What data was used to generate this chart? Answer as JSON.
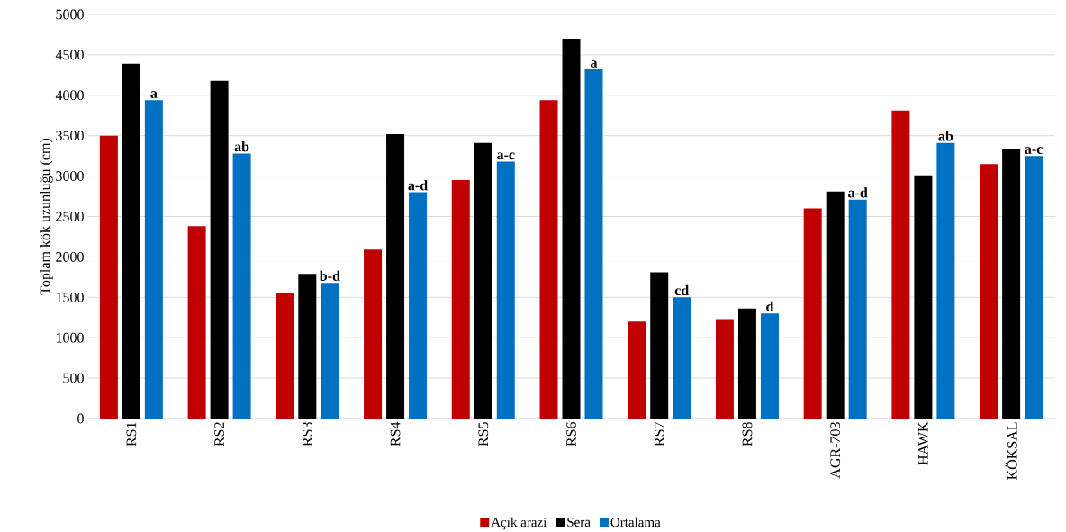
{
  "chart_data": {
    "type": "bar",
    "ylabel": "Toplam kök uzunluğu (cm)",
    "categories": [
      "RS1",
      "RS2",
      "RS3",
      "RS4",
      "RS5",
      "RS6",
      "RS7",
      "RS8",
      "AGR-703",
      "HAWK",
      "KÖKSAL"
    ],
    "series": [
      {
        "name": "Açık arazi",
        "color": "#c00000",
        "values": [
          3500,
          2380,
          1560,
          2090,
          2950,
          3940,
          1200,
          1230,
          2600,
          3810,
          3150
        ]
      },
      {
        "name": "Sera",
        "color": "#000000",
        "values": [
          4390,
          4180,
          1790,
          3520,
          3410,
          4700,
          1810,
          1360,
          2810,
          3010,
          3340
        ]
      },
      {
        "name": "Ortalama",
        "color": "#0070c0",
        "values": [
          3940,
          3280,
          1680,
          2800,
          3180,
          4320,
          1500,
          1300,
          2710,
          3410,
          3250
        ]
      }
    ],
    "annotations": [
      "a",
      "ab",
      "b-d",
      "a-d",
      "a-c",
      "a",
      "cd",
      "d",
      "a-d",
      "ab",
      "a-c"
    ],
    "ylim": [
      0,
      5000
    ],
    "yticks": [
      0,
      500,
      1000,
      1500,
      2000,
      2500,
      3000,
      3500,
      4000,
      4500,
      5000
    ],
    "grid": "y",
    "legend": "bottom"
  }
}
